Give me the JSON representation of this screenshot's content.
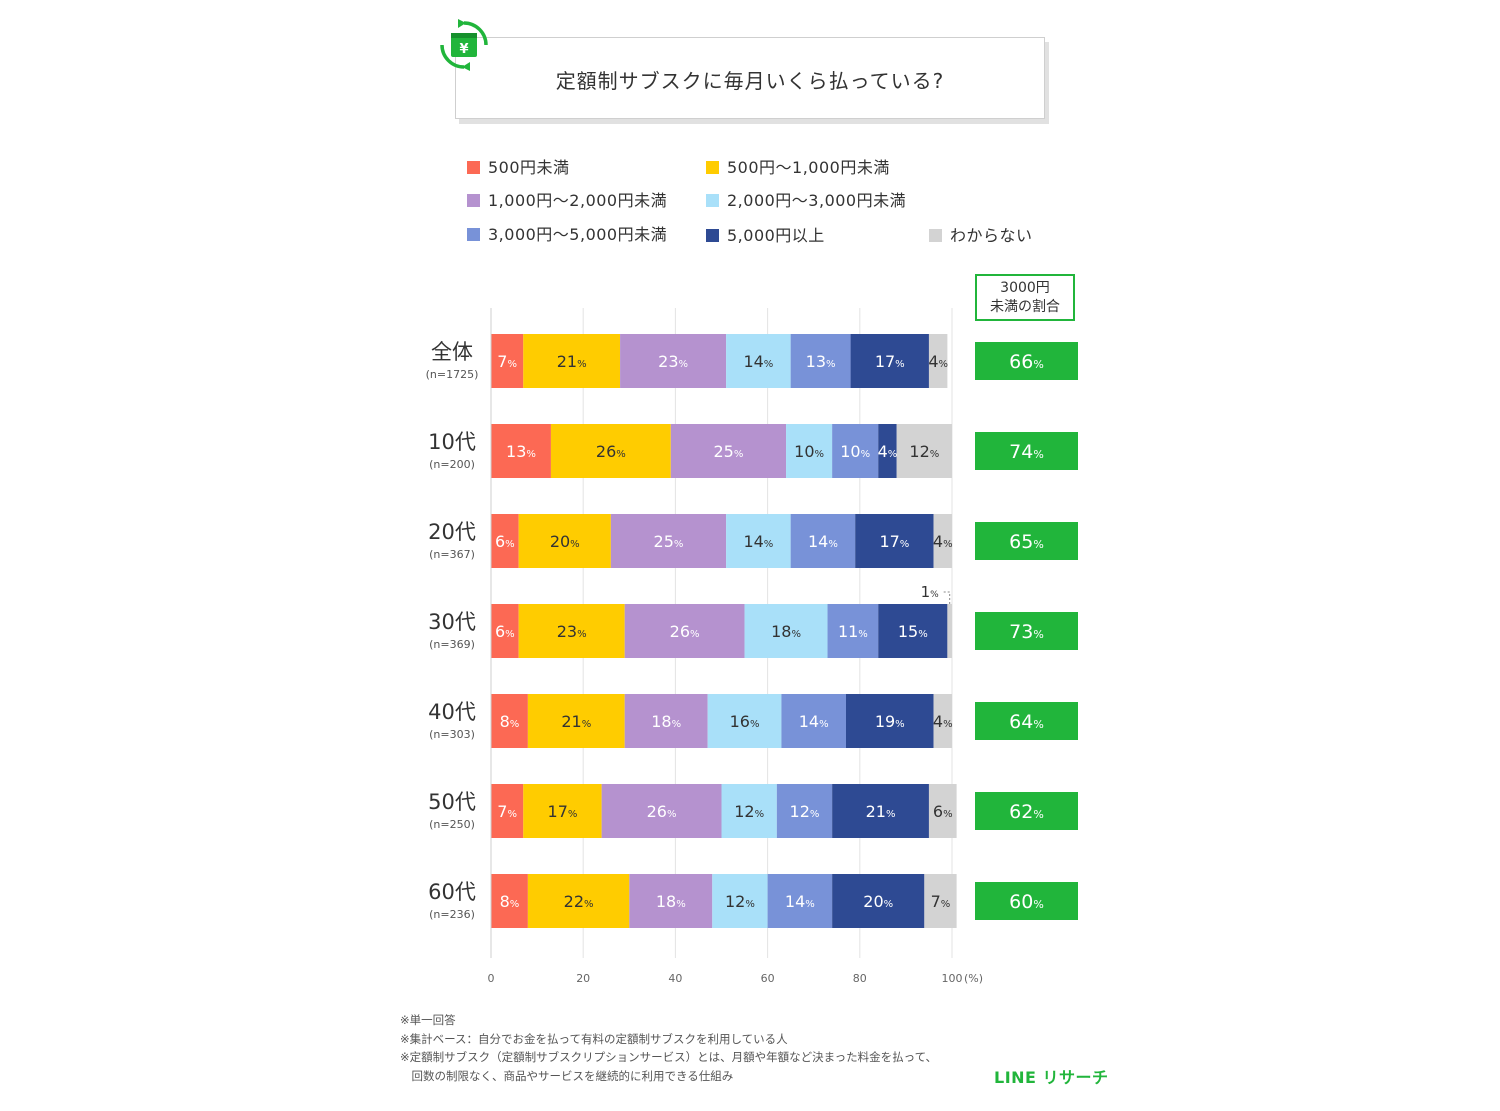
{
  "title": "定額制サブスクに毎月いくら払っている?",
  "legend": [
    {
      "label": "500円未満",
      "color": "#fc6954"
    },
    {
      "label": "500円～1,000円未満",
      "color": "#ffcc00"
    },
    {
      "label": "1,000円～2,000円未満",
      "color": "#b592cf"
    },
    {
      "label": "2,000円～3,000円未満",
      "color": "#a9e0f9"
    },
    {
      "label": "3,000円～5,000円未満",
      "color": "#7892d8"
    },
    {
      "label": "5,000円以上",
      "color": "#2e4a93"
    },
    {
      "label": "わからない",
      "color": "#d3d3d3"
    }
  ],
  "side_header": {
    "line1": "3000円",
    "line2": "未満の割合"
  },
  "chart_data": {
    "type": "bar",
    "orientation": "horizontal-stacked",
    "title": "定額制サブスクに毎月いくら払っている?",
    "unit": "%",
    "xlim": [
      0,
      100
    ],
    "x_ticks": [
      "0",
      "20",
      "40",
      "60",
      "80",
      "100"
    ],
    "x_unit_label": "(%)",
    "series": [
      {
        "name": "500円未満",
        "values": [
          7,
          13,
          6,
          6,
          8,
          7,
          8
        ]
      },
      {
        "name": "500円～1,000円未満",
        "values": [
          21,
          26,
          20,
          23,
          21,
          17,
          22
        ]
      },
      {
        "name": "1,000円～2,000円未満",
        "values": [
          23,
          25,
          25,
          26,
          18,
          26,
          18
        ]
      },
      {
        "name": "2,000円～3,000円未満",
        "values": [
          14,
          10,
          14,
          18,
          16,
          12,
          12
        ]
      },
      {
        "name": "3,000円～5,000円未満",
        "values": [
          13,
          10,
          14,
          11,
          14,
          12,
          14
        ]
      },
      {
        "name": "5,000円以上",
        "values": [
          17,
          4,
          17,
          15,
          19,
          21,
          20
        ]
      },
      {
        "name": "わからない",
        "values": [
          4,
          12,
          4,
          1,
          4,
          6,
          7
        ]
      }
    ],
    "rows": [
      {
        "label": "全体",
        "n": "(n=1725)",
        "under3000": "66"
      },
      {
        "label": "10代",
        "n": "(n=200)",
        "under3000": "74"
      },
      {
        "label": "20代",
        "n": "(n=367)",
        "under3000": "65"
      },
      {
        "label": "30代",
        "n": "(n=369)",
        "under3000": "73"
      },
      {
        "label": "40代",
        "n": "(n=303)",
        "under3000": "64"
      },
      {
        "label": "50代",
        "n": "(n=250)",
        "under3000": "62"
      },
      {
        "label": "60代",
        "n": "(n=236)",
        "under3000": "60"
      }
    ],
    "text_colors": [
      "#ffffff",
      "#333333",
      "#ffffff",
      "#333333",
      "#ffffff",
      "#ffffff",
      "#333333"
    ],
    "highlight_color": "#21b53b",
    "grid": true,
    "legend_position": "top"
  },
  "notes": [
    "※単一回答",
    "※集計ベース：自分でお金を払って有料の定額制サブスクを利用している人",
    "※定額制サブスク（定額制サブスクリプションサービス）とは、月額や年額など決まった料金を払って、",
    "　回数の制限なく、商品やサービスを継続的に利用できる仕組み"
  ],
  "brand": "LINE リサーチ"
}
